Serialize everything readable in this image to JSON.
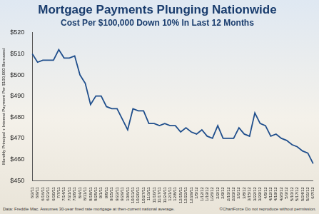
{
  "chart_data": {
    "type": "line",
    "title": "Mortgage Payments Plunging Nationwide",
    "subtitle": "Cost Per $100,000 Down 10% In Last 12 Months",
    "y_label": "Monthly Principal + Interest Payment Per $100,000 Borrowed",
    "annotations": [
      "Data: Freddie Mac. Assumes 30-year fixed rate mortgage at then-current national average.",
      "©ChartForce  Do not reproduce without permission."
    ],
    "categories": [
      "6/2/11",
      "6/9/11",
      "6/16/11",
      "6/23/11",
      "6/30/11",
      "7/7/11",
      "7/14/11",
      "7/21/11",
      "7/28/11",
      "8/4/11",
      "8/11/11",
      "8/18/11",
      "8/25/11",
      "9/1/11",
      "9/8/11",
      "9/15/11",
      "9/22/11",
      "9/29/11",
      "10/6/11",
      "10/13/11",
      "10/20/11",
      "10/27/11",
      "11/3/11",
      "11/10/11",
      "11/17/11",
      "11/24/11",
      "12/1/11",
      "12/8/11",
      "12/15/11",
      "12/22/11",
      "12/29/11",
      "1/5/12",
      "1/12/12",
      "1/19/12",
      "1/26/12",
      "2/2/12",
      "2/9/12",
      "2/16/12",
      "2/23/12",
      "3/1/12",
      "3/8/12",
      "3/15/12",
      "3/22/12",
      "3/29/12",
      "4/5/12",
      "4/12/12",
      "4/19/12",
      "4/26/12",
      "5/3/12",
      "5/10/12",
      "5/17/12",
      "5/24/12",
      "5/31/12",
      "6/7/12"
    ],
    "values": [
      510,
      506,
      507,
      507,
      507,
      512,
      508,
      508,
      509,
      500,
      496,
      486,
      490,
      490,
      485,
      484,
      484,
      479,
      474,
      484,
      483,
      483,
      477,
      477,
      476,
      477,
      476,
      476,
      473,
      475,
      473,
      472,
      474,
      471,
      470,
      476,
      470,
      470,
      470,
      475,
      472,
      471,
      482,
      477,
      476,
      471,
      472,
      470,
      469,
      467,
      466,
      464,
      463,
      458
    ],
    "color": "#1f4e8c",
    "ylim": [
      450,
      520
    ],
    "yticks": [
      {
        "value": 450,
        "label": "$450"
      },
      {
        "value": 460,
        "label": "$460"
      },
      {
        "value": 470,
        "label": "$470"
      },
      {
        "value": 480,
        "label": "$480"
      },
      {
        "value": 490,
        "label": "$490"
      },
      {
        "value": 500,
        "label": "$500"
      },
      {
        "value": 510,
        "label": "$510"
      },
      {
        "value": 520,
        "label": "$520"
      }
    ],
    "grid": false
  }
}
